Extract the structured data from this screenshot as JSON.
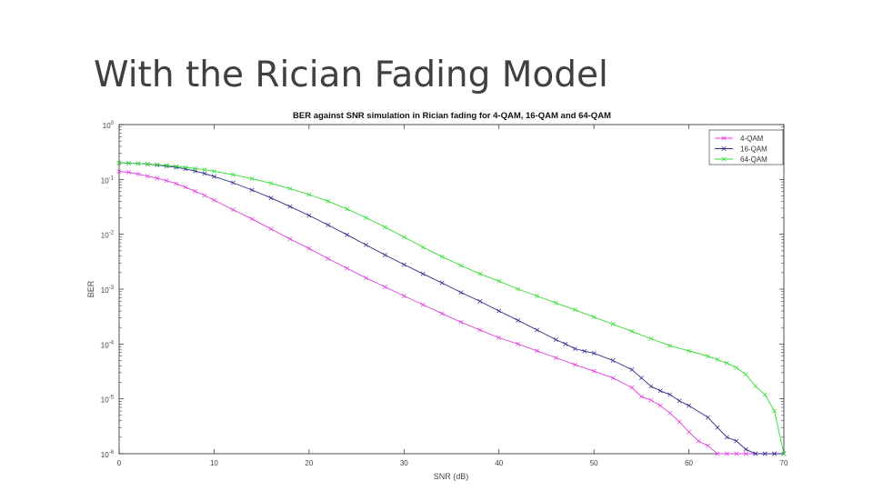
{
  "slide": {
    "title": "With the Rician Fading Model"
  },
  "chart_data": {
    "type": "line",
    "title": "BER against SNR simulation in Rician fading for 4-QAM, 16-QAM and 64-QAM",
    "xlabel": "SNR (dB)",
    "ylabel": "BER",
    "xlim": [
      0,
      70
    ],
    "ylim": [
      1e-06,
      1
    ],
    "yscale": "log",
    "xticks": [
      0,
      10,
      20,
      30,
      40,
      50,
      60,
      70
    ],
    "yticks": [
      {
        "value": 1,
        "base": "10",
        "exp": "0"
      },
      {
        "value": 0.1,
        "base": "10",
        "exp": "-1"
      },
      {
        "value": 0.01,
        "base": "10",
        "exp": "-2"
      },
      {
        "value": 0.001,
        "base": "10",
        "exp": "-3"
      },
      {
        "value": 0.0001,
        "base": "10",
        "exp": "-4"
      },
      {
        "value": 1e-05,
        "base": "10",
        "exp": "-5"
      },
      {
        "value": 1e-06,
        "base": "10",
        "exp": "-6"
      }
    ],
    "grid": false,
    "legend_position": "top-right",
    "series": [
      {
        "name": "4-QAM",
        "color": "#e040e0",
        "points": [
          [
            0,
            0.14
          ],
          [
            1,
            0.135
          ],
          [
            2,
            0.125
          ],
          [
            3,
            0.115
          ],
          [
            4,
            0.105
          ],
          [
            5,
            0.095
          ],
          [
            6,
            0.084
          ],
          [
            7,
            0.072
          ],
          [
            8,
            0.061
          ],
          [
            9,
            0.051
          ],
          [
            10,
            0.042
          ],
          [
            12,
            0.028
          ],
          [
            14,
            0.019
          ],
          [
            16,
            0.0125
          ],
          [
            18,
            0.0082
          ],
          [
            20,
            0.0055
          ],
          [
            22,
            0.0036
          ],
          [
            24,
            0.0024
          ],
          [
            26,
            0.0016
          ],
          [
            28,
            0.0011
          ],
          [
            30,
            0.00075
          ],
          [
            32,
            0.00052
          ],
          [
            34,
            0.00036
          ],
          [
            36,
            0.00025
          ],
          [
            38,
            0.00018
          ],
          [
            40,
            0.00013
          ],
          [
            42,
            0.0001
          ],
          [
            44,
            7.5e-05
          ],
          [
            46,
            5.6e-05
          ],
          [
            48,
            4.2e-05
          ],
          [
            50,
            3.2e-05
          ],
          [
            52,
            2.4e-05
          ],
          [
            54,
            1.6e-05
          ],
          [
            55,
            1.1e-05
          ],
          [
            56,
            9.5e-06
          ],
          [
            57,
            7.5e-06
          ],
          [
            58,
            5.5e-06
          ],
          [
            59,
            3.8e-06
          ],
          [
            60,
            2.5e-06
          ],
          [
            61,
            1.7e-06
          ],
          [
            62,
            1.4e-06
          ],
          [
            63,
            1e-06
          ],
          [
            64,
            1e-06
          ],
          [
            65,
            1e-06
          ],
          [
            66,
            1e-06
          ],
          [
            67,
            1e-06
          ],
          [
            68,
            1e-06
          ],
          [
            69,
            1e-06
          ],
          [
            70,
            1e-06
          ]
        ]
      },
      {
        "name": "16-QAM",
        "color": "#2b2b8c",
        "points": [
          [
            0,
            0.2
          ],
          [
            1,
            0.198
          ],
          [
            2,
            0.195
          ],
          [
            3,
            0.19
          ],
          [
            4,
            0.183
          ],
          [
            5,
            0.175
          ],
          [
            6,
            0.166
          ],
          [
            7,
            0.155
          ],
          [
            8,
            0.142
          ],
          [
            9,
            0.128
          ],
          [
            10,
            0.113
          ],
          [
            12,
            0.087
          ],
          [
            14,
            0.064
          ],
          [
            16,
            0.046
          ],
          [
            18,
            0.032
          ],
          [
            20,
            0.022
          ],
          [
            22,
            0.0148
          ],
          [
            24,
            0.0098
          ],
          [
            26,
            0.0064
          ],
          [
            28,
            0.0042
          ],
          [
            30,
            0.0028
          ],
          [
            32,
            0.0019
          ],
          [
            34,
            0.0013
          ],
          [
            36,
            0.00087
          ],
          [
            38,
            0.0006
          ],
          [
            40,
            0.0004
          ],
          [
            42,
            0.00027
          ],
          [
            44,
            0.00018
          ],
          [
            46,
            0.00012
          ],
          [
            47,
            0.0001
          ],
          [
            48,
            8.2e-05
          ],
          [
            49,
            7.4e-05
          ],
          [
            50,
            6.8e-05
          ],
          [
            52,
            5e-05
          ],
          [
            54,
            3.4e-05
          ],
          [
            55,
            2.4e-05
          ],
          [
            56,
            1.7e-05
          ],
          [
            57,
            1.4e-05
          ],
          [
            58,
            1.2e-05
          ],
          [
            59,
            9.2e-06
          ],
          [
            60,
            7.5e-06
          ],
          [
            62,
            4.6e-06
          ],
          [
            63,
            3e-06
          ],
          [
            64,
            2e-06
          ],
          [
            65,
            1.7e-06
          ],
          [
            66,
            1.2e-06
          ],
          [
            67,
            1e-06
          ],
          [
            68,
            1e-06
          ],
          [
            69,
            1e-06
          ],
          [
            70,
            1e-06
          ]
        ]
      },
      {
        "name": "64-QAM",
        "color": "#33dd33",
        "points": [
          [
            0,
            0.2
          ],
          [
            1,
            0.198
          ],
          [
            2,
            0.195
          ],
          [
            3,
            0.191
          ],
          [
            4,
            0.186
          ],
          [
            5,
            0.18
          ],
          [
            6,
            0.173
          ],
          [
            7,
            0.166
          ],
          [
            8,
            0.158
          ],
          [
            9,
            0.15
          ],
          [
            10,
            0.141
          ],
          [
            12,
            0.122
          ],
          [
            14,
            0.103
          ],
          [
            16,
            0.085
          ],
          [
            18,
            0.068
          ],
          [
            20,
            0.053
          ],
          [
            22,
            0.04
          ],
          [
            24,
            0.029
          ],
          [
            26,
            0.02
          ],
          [
            28,
            0.0135
          ],
          [
            30,
            0.0089
          ],
          [
            32,
            0.0058
          ],
          [
            34,
            0.0039
          ],
          [
            36,
            0.0027
          ],
          [
            38,
            0.0019
          ],
          [
            40,
            0.0014
          ],
          [
            42,
            0.001
          ],
          [
            44,
            0.00075
          ],
          [
            46,
            0.00056
          ],
          [
            48,
            0.00042
          ],
          [
            50,
            0.00031
          ],
          [
            52,
            0.00023
          ],
          [
            54,
            0.00017
          ],
          [
            56,
            0.000125
          ],
          [
            58,
            9.3e-05
          ],
          [
            60,
            7.5e-05
          ],
          [
            62,
            6e-05
          ],
          [
            63,
            5.2e-05
          ],
          [
            64,
            4.5e-05
          ],
          [
            65,
            3.7e-05
          ],
          [
            66,
            2.8e-05
          ],
          [
            67,
            1.7e-05
          ],
          [
            68,
            1.2e-05
          ],
          [
            69,
            6e-06
          ],
          [
            70,
            1e-06
          ]
        ]
      }
    ]
  }
}
